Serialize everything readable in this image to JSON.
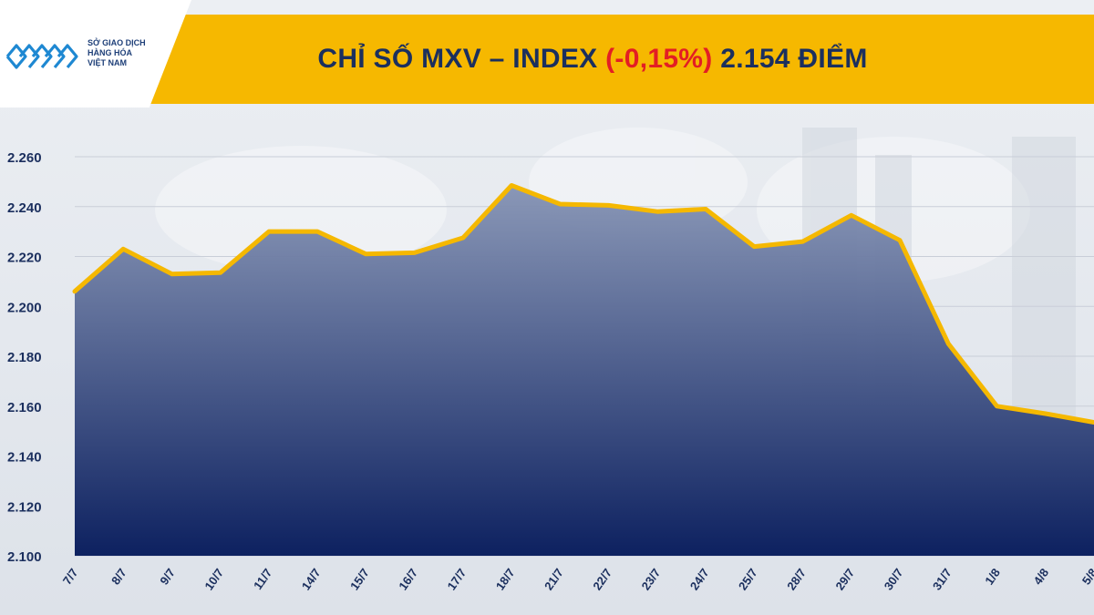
{
  "header": {
    "title_prefix": "CHỈ SỐ MXV – INDEX",
    "title_change": "(-0,15%)",
    "title_suffix": "2.154 ĐIỂM"
  },
  "logo": {
    "lines": [
      "SỞ GIAO DỊCH",
      "HÀNG HÓA",
      "VIỆT NAM"
    ],
    "icon": "mxv-logo-icon"
  },
  "colors": {
    "header": "#f6b800",
    "line": "#f5b800",
    "area_top": "#8593b4",
    "area_bottom": "#0d2160",
    "negative": "#e31e24",
    "text": "#1b2f5e"
  },
  "chart_data": {
    "type": "area",
    "categories": [
      "7/7",
      "8/7",
      "9/7",
      "10/7",
      "11/7",
      "14/7",
      "15/7",
      "16/7",
      "17/7",
      "18/7",
      "21/7",
      "22/7",
      "23/7",
      "24/7",
      "25/7",
      "28/7",
      "29/7",
      "30/7",
      "31/7",
      "1/8",
      "4/8",
      "5/8"
    ],
    "values": [
      2206,
      2223,
      2213,
      2213.5,
      2230,
      2230,
      2221,
      2221.5,
      2227.5,
      2248.5,
      2241,
      2240.5,
      2238,
      2239,
      2224,
      2226,
      2236.5,
      2226.5,
      2185,
      2160,
      2157,
      2153.5
    ],
    "y_ticks": [
      "2.100",
      "2.120",
      "2.140",
      "2.160",
      "2.180",
      "2.200",
      "2.220",
      "2.240",
      "2.260"
    ],
    "ylim": [
      2100,
      2260
    ],
    "grid": true,
    "legend": "none"
  }
}
